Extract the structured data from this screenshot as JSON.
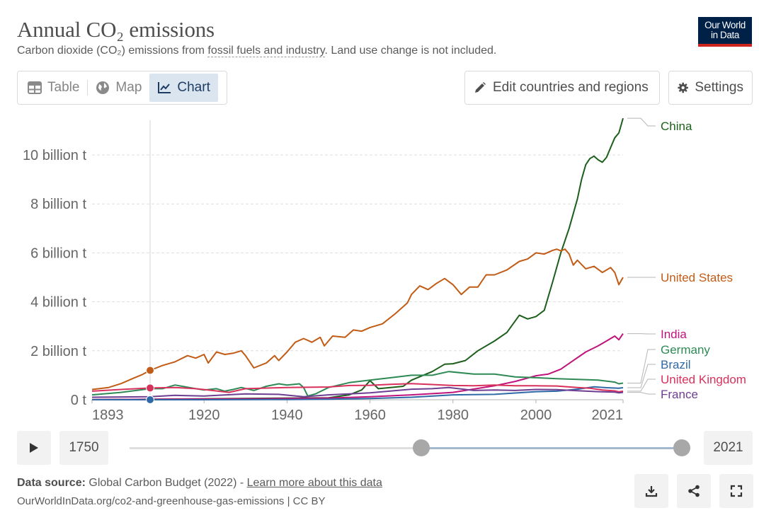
{
  "header": {
    "title": "Annual CO₂ emissions",
    "subtitle_pre": "Carbon dioxide (CO₂) emissions from ",
    "subtitle_link": "fossil fuels and industry",
    "subtitle_post": ". Land use change is not included.",
    "logo_line1": "Our World",
    "logo_line2": "in Data"
  },
  "tabs": [
    {
      "label": "Table",
      "icon": "table-icon",
      "active": false
    },
    {
      "label": "Map",
      "icon": "globe-icon",
      "active": false
    },
    {
      "label": "Chart",
      "icon": "line-chart-icon",
      "active": true
    }
  ],
  "toolbar": {
    "edit_label": "Edit countries and regions",
    "settings_label": "Settings"
  },
  "timeline": {
    "start_year": "1750",
    "end_year": "2021"
  },
  "footer": {
    "source_label": "Data source:",
    "source_text": "Global Carbon Budget (2022) - ",
    "learn_more": "Learn more about this data",
    "url": "OurWorldInData.org/co2-and-greenhouse-gas-emissions | CC BY"
  },
  "chart_data": {
    "type": "line",
    "x_ticks": [
      "1893",
      "1920",
      "1940",
      "1960",
      "1980",
      "2000",
      "2021"
    ],
    "x_tick_values": [
      1893,
      1920,
      1940,
      1960,
      1980,
      2000,
      2021
    ],
    "xlim": [
      1893,
      2021
    ],
    "y_ticks": [
      "0 t",
      "2 billion t",
      "4 billion t",
      "6 billion t",
      "8 billion t",
      "10 billion t"
    ],
    "y_tick_values": [
      0,
      2,
      4,
      6,
      8,
      10
    ],
    "ylim": [
      0,
      11.5
    ],
    "grid": true,
    "hover_year": 1907,
    "series": [
      {
        "name": "China",
        "color": "#1b5f1b",
        "points": [
          [
            1893,
            0
          ],
          [
            1950,
            0.08
          ],
          [
            1955,
            0.2
          ],
          [
            1958,
            0.4
          ],
          [
            1960,
            0.78
          ],
          [
            1962,
            0.45
          ],
          [
            1965,
            0.5
          ],
          [
            1968,
            0.55
          ],
          [
            1970,
            0.8
          ],
          [
            1975,
            1.15
          ],
          [
            1978,
            1.45
          ],
          [
            1980,
            1.47
          ],
          [
            1983,
            1.6
          ],
          [
            1986,
            2.0
          ],
          [
            1990,
            2.4
          ],
          [
            1993,
            2.75
          ],
          [
            1996,
            3.45
          ],
          [
            1998,
            3.3
          ],
          [
            2000,
            3.4
          ],
          [
            2002,
            3.65
          ],
          [
            2004,
            4.8
          ],
          [
            2006,
            6.0
          ],
          [
            2008,
            7.0
          ],
          [
            2010,
            8.2
          ],
          [
            2011,
            9.0
          ],
          [
            2012,
            9.6
          ],
          [
            2013,
            9.85
          ],
          [
            2014,
            9.95
          ],
          [
            2015,
            9.8
          ],
          [
            2016,
            9.7
          ],
          [
            2017,
            9.9
          ],
          [
            2018,
            10.3
          ],
          [
            2019,
            10.7
          ],
          [
            2020,
            10.9
          ],
          [
            2021,
            11.5
          ]
        ]
      },
      {
        "name": "United States",
        "color": "#c15b15",
        "points": [
          [
            1893,
            0.42
          ],
          [
            1897,
            0.5
          ],
          [
            1900,
            0.66
          ],
          [
            1903,
            0.88
          ],
          [
            1905,
            1.02
          ],
          [
            1907,
            1.2
          ],
          [
            1910,
            1.4
          ],
          [
            1913,
            1.55
          ],
          [
            1916,
            1.8
          ],
          [
            1918,
            1.7
          ],
          [
            1920,
            1.85
          ],
          [
            1921,
            1.5
          ],
          [
            1923,
            1.95
          ],
          [
            1925,
            1.85
          ],
          [
            1927,
            1.9
          ],
          [
            1929,
            2.0
          ],
          [
            1930,
            1.8
          ],
          [
            1932,
            1.3
          ],
          [
            1935,
            1.5
          ],
          [
            1937,
            1.8
          ],
          [
            1938,
            1.6
          ],
          [
            1940,
            1.95
          ],
          [
            1942,
            2.35
          ],
          [
            1944,
            2.5
          ],
          [
            1946,
            2.35
          ],
          [
            1948,
            2.55
          ],
          [
            1949,
            2.2
          ],
          [
            1951,
            2.6
          ],
          [
            1954,
            2.55
          ],
          [
            1956,
            2.85
          ],
          [
            1958,
            2.8
          ],
          [
            1960,
            2.95
          ],
          [
            1963,
            3.1
          ],
          [
            1966,
            3.5
          ],
          [
            1969,
            3.95
          ],
          [
            1970,
            4.3
          ],
          [
            1972,
            4.65
          ],
          [
            1974,
            4.5
          ],
          [
            1976,
            4.75
          ],
          [
            1978,
            4.95
          ],
          [
            1980,
            4.7
          ],
          [
            1982,
            4.3
          ],
          [
            1984,
            4.6
          ],
          [
            1986,
            4.6
          ],
          [
            1988,
            5.1
          ],
          [
            1990,
            5.1
          ],
          [
            1993,
            5.3
          ],
          [
            1996,
            5.65
          ],
          [
            1998,
            5.75
          ],
          [
            2000,
            6.0
          ],
          [
            2002,
            5.95
          ],
          [
            2004,
            6.1
          ],
          [
            2005,
            6.15
          ],
          [
            2006,
            6.08
          ],
          [
            2007,
            6.15
          ],
          [
            2008,
            5.95
          ],
          [
            2009,
            5.5
          ],
          [
            2010,
            5.7
          ],
          [
            2012,
            5.35
          ],
          [
            2014,
            5.45
          ],
          [
            2016,
            5.2
          ],
          [
            2018,
            5.4
          ],
          [
            2019,
            5.2
          ],
          [
            2020,
            4.7
          ],
          [
            2021,
            5.0
          ]
        ]
      },
      {
        "name": "India",
        "color": "#c0137b",
        "points": [
          [
            1893,
            0.01
          ],
          [
            1920,
            0.03
          ],
          [
            1940,
            0.05
          ],
          [
            1950,
            0.07
          ],
          [
            1960,
            0.12
          ],
          [
            1970,
            0.2
          ],
          [
            1980,
            0.3
          ],
          [
            1990,
            0.57
          ],
          [
            1995,
            0.75
          ],
          [
            2000,
            0.98
          ],
          [
            2003,
            1.05
          ],
          [
            2006,
            1.25
          ],
          [
            2009,
            1.6
          ],
          [
            2012,
            1.95
          ],
          [
            2015,
            2.2
          ],
          [
            2017,
            2.4
          ],
          [
            2019,
            2.6
          ],
          [
            2020,
            2.45
          ],
          [
            2021,
            2.7
          ]
        ]
      },
      {
        "name": "Germany",
        "color": "#2e8a55",
        "points": [
          [
            1893,
            0.2
          ],
          [
            1900,
            0.3
          ],
          [
            1907,
            0.45
          ],
          [
            1910,
            0.45
          ],
          [
            1913,
            0.6
          ],
          [
            1918,
            0.45
          ],
          [
            1920,
            0.4
          ],
          [
            1923,
            0.45
          ],
          [
            1925,
            0.35
          ],
          [
            1927,
            0.42
          ],
          [
            1929,
            0.5
          ],
          [
            1932,
            0.38
          ],
          [
            1935,
            0.55
          ],
          [
            1938,
            0.65
          ],
          [
            1940,
            0.6
          ],
          [
            1943,
            0.65
          ],
          [
            1944,
            0.5
          ],
          [
            1945,
            0.15
          ],
          [
            1947,
            0.25
          ],
          [
            1950,
            0.5
          ],
          [
            1955,
            0.7
          ],
          [
            1960,
            0.8
          ],
          [
            1965,
            0.9
          ],
          [
            1970,
            1.0
          ],
          [
            1975,
            1.0
          ],
          [
            1979,
            1.15
          ],
          [
            1985,
            1.05
          ],
          [
            1990,
            1.05
          ],
          [
            1995,
            0.93
          ],
          [
            2000,
            0.9
          ],
          [
            2005,
            0.86
          ],
          [
            2010,
            0.83
          ],
          [
            2015,
            0.8
          ],
          [
            2019,
            0.72
          ],
          [
            2020,
            0.65
          ],
          [
            2021,
            0.68
          ]
        ]
      },
      {
        "name": "Brazil",
        "color": "#2f6aa7",
        "points": [
          [
            1893,
            0.0
          ],
          [
            1920,
            0.0
          ],
          [
            1940,
            0.01
          ],
          [
            1950,
            0.02
          ],
          [
            1960,
            0.05
          ],
          [
            1970,
            0.1
          ],
          [
            1980,
            0.2
          ],
          [
            1990,
            0.22
          ],
          [
            2000,
            0.33
          ],
          [
            2005,
            0.35
          ],
          [
            2010,
            0.43
          ],
          [
            2014,
            0.53
          ],
          [
            2017,
            0.49
          ],
          [
            2020,
            0.47
          ],
          [
            2021,
            0.49
          ]
        ]
      },
      {
        "name": "United Kingdom",
        "color": "#d8315b",
        "points": [
          [
            1893,
            0.35
          ],
          [
            1900,
            0.42
          ],
          [
            1907,
            0.48
          ],
          [
            1913,
            0.5
          ],
          [
            1918,
            0.45
          ],
          [
            1921,
            0.4
          ],
          [
            1926,
            0.3
          ],
          [
            1930,
            0.45
          ],
          [
            1940,
            0.5
          ],
          [
            1950,
            0.52
          ],
          [
            1955,
            0.58
          ],
          [
            1960,
            0.59
          ],
          [
            1965,
            0.63
          ],
          [
            1970,
            0.66
          ],
          [
            1975,
            0.62
          ],
          [
            1980,
            0.58
          ],
          [
            1985,
            0.57
          ],
          [
            1990,
            0.6
          ],
          [
            1995,
            0.57
          ],
          [
            2000,
            0.57
          ],
          [
            2005,
            0.56
          ],
          [
            2010,
            0.5
          ],
          [
            2013,
            0.47
          ],
          [
            2016,
            0.4
          ],
          [
            2019,
            0.36
          ],
          [
            2020,
            0.32
          ],
          [
            2021,
            0.35
          ]
        ]
      },
      {
        "name": "France",
        "color": "#6d3e91",
        "points": [
          [
            1893,
            0.1
          ],
          [
            1907,
            0.12
          ],
          [
            1913,
            0.18
          ],
          [
            1920,
            0.15
          ],
          [
            1930,
            0.24
          ],
          [
            1938,
            0.22
          ],
          [
            1944,
            0.12
          ],
          [
            1950,
            0.2
          ],
          [
            1960,
            0.28
          ],
          [
            1970,
            0.43
          ],
          [
            1975,
            0.45
          ],
          [
            1979,
            0.5
          ],
          [
            1985,
            0.38
          ],
          [
            1990,
            0.4
          ],
          [
            1995,
            0.38
          ],
          [
            2000,
            0.42
          ],
          [
            2005,
            0.41
          ],
          [
            2010,
            0.37
          ],
          [
            2015,
            0.33
          ],
          [
            2019,
            0.31
          ],
          [
            2020,
            0.28
          ],
          [
            2021,
            0.3
          ]
        ]
      }
    ]
  }
}
